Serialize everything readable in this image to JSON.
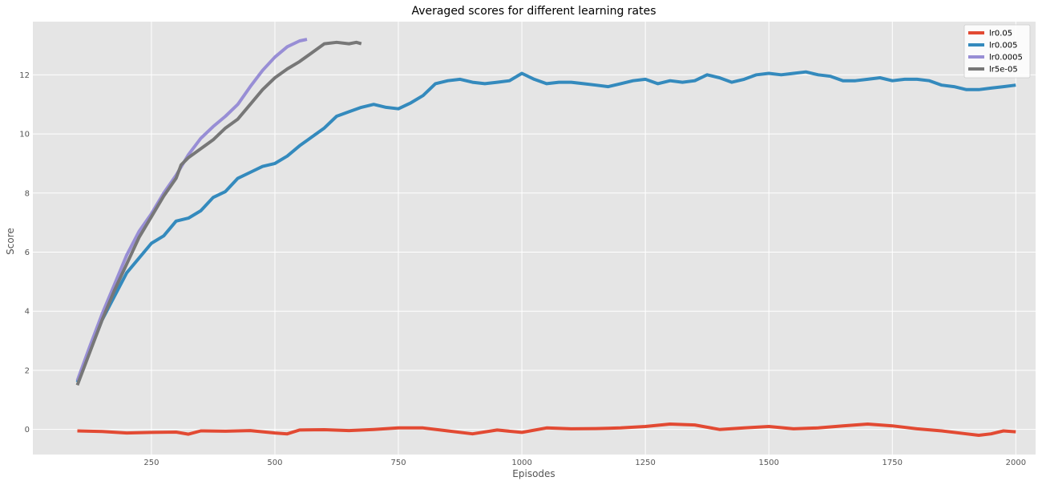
{
  "chart_data": {
    "type": "line",
    "title": "Averaged scores for different learning rates",
    "xlabel": "Episodes",
    "ylabel": "Score",
    "xlim": [
      10,
      2040
    ],
    "ylim": [
      -0.85,
      13.8
    ],
    "xticks": [
      250,
      500,
      750,
      1000,
      1250,
      1500,
      1750,
      2000
    ],
    "yticks": [
      0,
      2,
      4,
      6,
      8,
      10,
      12
    ],
    "grid": true,
    "legend": "top-right",
    "background_color": "#E5E5E5",
    "series": [
      {
        "name": "lr0.05",
        "color": "#E24A33",
        "points": [
          [
            100,
            -0.05
          ],
          [
            150,
            -0.07
          ],
          [
            200,
            -0.12
          ],
          [
            250,
            -0.1
          ],
          [
            300,
            -0.09
          ],
          [
            325,
            -0.16
          ],
          [
            350,
            -0.05
          ],
          [
            400,
            -0.06
          ],
          [
            450,
            -0.04
          ],
          [
            500,
            -0.12
          ],
          [
            525,
            -0.15
          ],
          [
            550,
            -0.02
          ],
          [
            600,
            -0.01
          ],
          [
            650,
            -0.04
          ],
          [
            700,
            0.0
          ],
          [
            750,
            0.05
          ],
          [
            800,
            0.05
          ],
          [
            850,
            -0.05
          ],
          [
            900,
            -0.15
          ],
          [
            950,
            -0.02
          ],
          [
            1000,
            -0.1
          ],
          [
            1050,
            0.05
          ],
          [
            1100,
            0.02
          ],
          [
            1150,
            0.03
          ],
          [
            1200,
            0.05
          ],
          [
            1250,
            0.1
          ],
          [
            1300,
            0.18
          ],
          [
            1350,
            0.15
          ],
          [
            1400,
            0.0
          ],
          [
            1450,
            0.05
          ],
          [
            1500,
            0.1
          ],
          [
            1550,
            0.02
          ],
          [
            1600,
            0.05
          ],
          [
            1650,
            0.12
          ],
          [
            1700,
            0.18
          ],
          [
            1750,
            0.12
          ],
          [
            1800,
            0.02
          ],
          [
            1850,
            -0.05
          ],
          [
            1900,
            -0.15
          ],
          [
            1925,
            -0.2
          ],
          [
            1950,
            -0.15
          ],
          [
            1975,
            -0.05
          ],
          [
            2000,
            -0.08
          ]
        ]
      },
      {
        "name": "lr0.005",
        "color": "#348ABD",
        "points": [
          [
            100,
            1.6
          ],
          [
            150,
            3.7
          ],
          [
            200,
            5.3
          ],
          [
            250,
            6.3
          ],
          [
            275,
            6.55
          ],
          [
            300,
            7.05
          ],
          [
            325,
            7.15
          ],
          [
            350,
            7.4
          ],
          [
            375,
            7.85
          ],
          [
            400,
            8.05
          ],
          [
            425,
            8.5
          ],
          [
            450,
            8.7
          ],
          [
            475,
            8.9
          ],
          [
            500,
            9.0
          ],
          [
            525,
            9.25
          ],
          [
            550,
            9.6
          ],
          [
            575,
            9.9
          ],
          [
            600,
            10.2
          ],
          [
            625,
            10.6
          ],
          [
            650,
            10.75
          ],
          [
            675,
            10.9
          ],
          [
            700,
            11.0
          ],
          [
            725,
            10.9
          ],
          [
            750,
            10.85
          ],
          [
            775,
            11.05
          ],
          [
            800,
            11.3
          ],
          [
            825,
            11.7
          ],
          [
            850,
            11.8
          ],
          [
            875,
            11.85
          ],
          [
            900,
            11.75
          ],
          [
            925,
            11.7
          ],
          [
            950,
            11.75
          ],
          [
            975,
            11.8
          ],
          [
            1000,
            12.05
          ],
          [
            1025,
            11.85
          ],
          [
            1050,
            11.7
          ],
          [
            1075,
            11.75
          ],
          [
            1100,
            11.75
          ],
          [
            1125,
            11.7
          ],
          [
            1150,
            11.65
          ],
          [
            1175,
            11.6
          ],
          [
            1200,
            11.7
          ],
          [
            1225,
            11.8
          ],
          [
            1250,
            11.85
          ],
          [
            1275,
            11.7
          ],
          [
            1300,
            11.8
          ],
          [
            1325,
            11.75
          ],
          [
            1350,
            11.8
          ],
          [
            1375,
            12.0
          ],
          [
            1400,
            11.9
          ],
          [
            1425,
            11.75
          ],
          [
            1450,
            11.85
          ],
          [
            1475,
            12.0
          ],
          [
            1500,
            12.05
          ],
          [
            1525,
            12.0
          ],
          [
            1550,
            12.05
          ],
          [
            1575,
            12.1
          ],
          [
            1600,
            12.0
          ],
          [
            1625,
            11.95
          ],
          [
            1650,
            11.8
          ],
          [
            1675,
            11.8
          ],
          [
            1700,
            11.85
          ],
          [
            1725,
            11.9
          ],
          [
            1750,
            11.8
          ],
          [
            1775,
            11.85
          ],
          [
            1800,
            11.85
          ],
          [
            1825,
            11.8
          ],
          [
            1850,
            11.65
          ],
          [
            1875,
            11.6
          ],
          [
            1900,
            11.5
          ],
          [
            1925,
            11.5
          ],
          [
            1950,
            11.55
          ],
          [
            1975,
            11.6
          ],
          [
            2000,
            11.65
          ]
        ]
      },
      {
        "name": "lr0.0005",
        "color": "#988ED5",
        "points": [
          [
            100,
            1.65
          ],
          [
            125,
            2.8
          ],
          [
            150,
            3.9
          ],
          [
            175,
            4.9
          ],
          [
            200,
            5.9
          ],
          [
            225,
            6.7
          ],
          [
            250,
            7.3
          ],
          [
            275,
            8.0
          ],
          [
            300,
            8.6
          ],
          [
            325,
            9.3
          ],
          [
            350,
            9.85
          ],
          [
            375,
            10.25
          ],
          [
            400,
            10.6
          ],
          [
            425,
            11.0
          ],
          [
            450,
            11.6
          ],
          [
            475,
            12.15
          ],
          [
            500,
            12.6
          ],
          [
            525,
            12.95
          ],
          [
            550,
            13.15
          ],
          [
            565,
            13.2
          ]
        ]
      },
      {
        "name": "lr5e-05",
        "color": "#777777",
        "points": [
          [
            100,
            1.5
          ],
          [
            125,
            2.6
          ],
          [
            150,
            3.7
          ],
          [
            175,
            4.7
          ],
          [
            200,
            5.6
          ],
          [
            225,
            6.5
          ],
          [
            250,
            7.2
          ],
          [
            275,
            7.9
          ],
          [
            300,
            8.5
          ],
          [
            310,
            8.95
          ],
          [
            325,
            9.2
          ],
          [
            350,
            9.5
          ],
          [
            375,
            9.8
          ],
          [
            400,
            10.2
          ],
          [
            425,
            10.5
          ],
          [
            450,
            11.0
          ],
          [
            475,
            11.5
          ],
          [
            500,
            11.9
          ],
          [
            525,
            12.2
          ],
          [
            550,
            12.45
          ],
          [
            575,
            12.75
          ],
          [
            600,
            13.05
          ],
          [
            625,
            13.1
          ],
          [
            650,
            13.05
          ],
          [
            665,
            13.1
          ],
          [
            675,
            13.05
          ]
        ]
      }
    ]
  }
}
